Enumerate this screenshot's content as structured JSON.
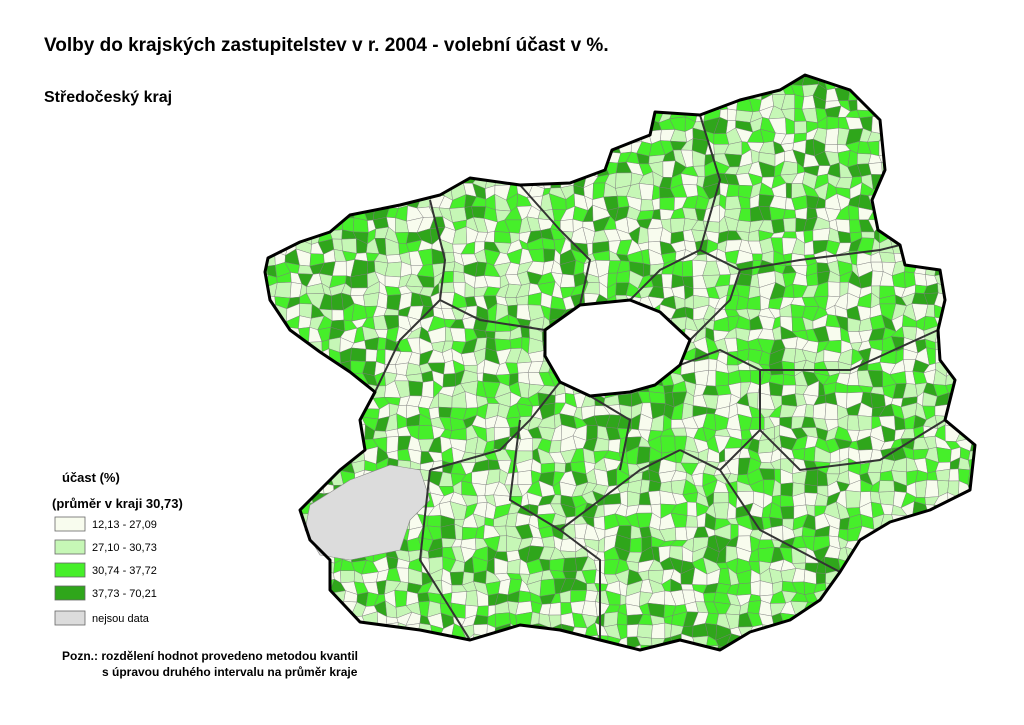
{
  "title": "Volby do krajských zastupitelstev v r. 2004 - volební účast v %.",
  "subtitle": "Středočeský kraj",
  "legend": {
    "title": "účast (%)",
    "subtitle": "(průměr v kraji 30,73)",
    "items": [
      {
        "label": "12,13 - 27,09",
        "color": "#f8fcee"
      },
      {
        "label": "27,10 - 30,73",
        "color": "#c6f7b6"
      },
      {
        "label": "30,74 - 37,72",
        "color": "#46ef2a"
      },
      {
        "label": "37,73 - 70,21",
        "color": "#2fa61b"
      }
    ],
    "no_data": {
      "label": "nejsou data",
      "color": "#dcdcdc"
    }
  },
  "note": [
    "Pozn.: rozdělení hodnot provedeno metodou kvantil",
    "s úpravou druhého intervalu na průměr kraje"
  ]
}
